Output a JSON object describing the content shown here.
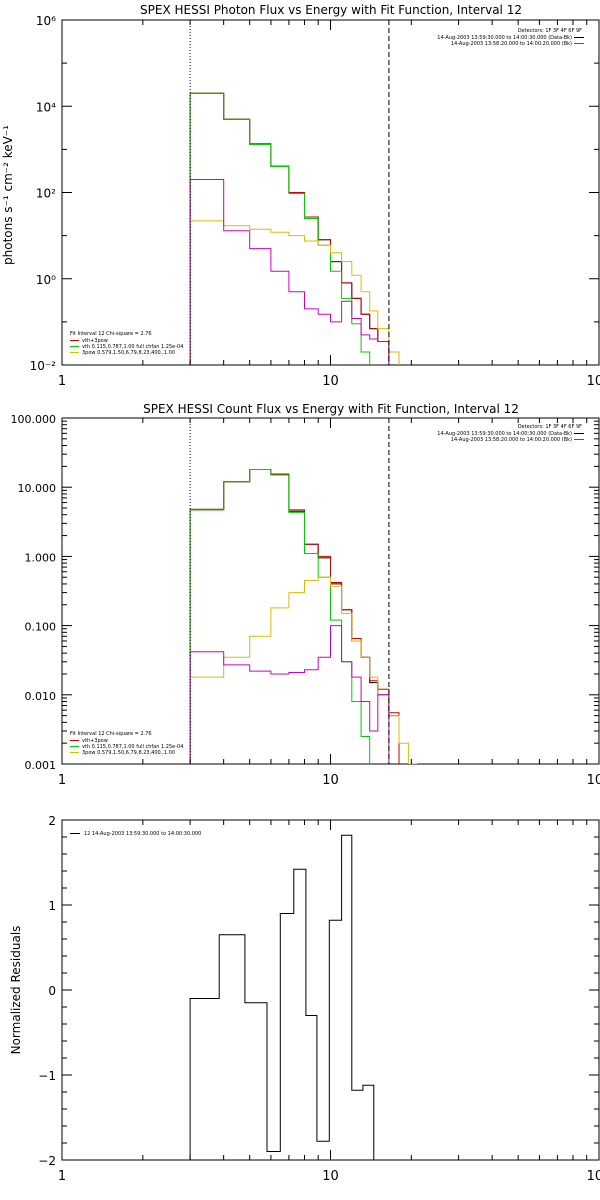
{
  "chart_data": [
    {
      "type": "line",
      "title": "SPEX HESSI Photon Flux vs Energy with Fit Function, Interval 12",
      "xlabel": "",
      "ylabel": "photons s⁻¹ cm⁻² keV⁻¹",
      "xscale": "log",
      "yscale": "log",
      "xlim": [
        1,
        100
      ],
      "ylim": [
        0.01,
        1000000
      ],
      "x_ticks": [
        1,
        10,
        100
      ],
      "x_tick_labels": [
        "1",
        "10",
        "100"
      ],
      "y_ticks": [
        0.01,
        1,
        100,
        10000,
        1000000
      ],
      "y_tick_labels": [
        "10⁻²",
        "10⁰",
        "10²",
        "10⁴",
        "10⁶"
      ],
      "grid": false,
      "vlines": [
        {
          "x": 3.0,
          "style": "dotted"
        },
        {
          "x": 16.5,
          "style": "dashed"
        }
      ],
      "legend_top_right": [
        "Detectors: 1F 3F 4F 6F 9F",
        "14-Aug-2003 13:59:30.000 to 14:00:30.000 (Data-Bk)",
        "14-Aug-2003 13:58:20.000 to 14:00:20.000 (Bk)"
      ],
      "legend_bottom_left_header": "Fit Interval 12   Chi-square = 2.76",
      "legend": [
        {
          "name": "vth+3pow",
          "color": "#cc0000"
        },
        {
          "name": "vth 0.115,0.787,1.00  full chfan 1.25e-04",
          "color": "#00cc00"
        },
        {
          "name": "3pow 0.579,1.50,6.79,8.23,400.,1.00",
          "color": "#ddbb00"
        }
      ],
      "edges": [
        3.0,
        4.0,
        5.0,
        6.0,
        7.0,
        8.0,
        9.0,
        10.0,
        11.0,
        12.0,
        13.0,
        14.0,
        15.0,
        16.5,
        18.0,
        19.5,
        21.0
      ],
      "series": [
        {
          "name": "Data-Bk",
          "color": "#000000",
          "values": [
            20000,
            5000,
            1300,
            400,
            100,
            27,
            8,
            2.5,
            0.8,
            0.35,
            0.15,
            0.07,
            0.035,
            0.009,
            null,
            null
          ]
        },
        {
          "name": "vth+3pow",
          "color": "#cc0000",
          "values": [
            20000,
            5000,
            1350,
            410,
            100,
            27,
            8,
            2.5,
            0.8,
            0.35,
            0.15,
            0.07,
            0.035,
            0.009,
            0.005,
            null
          ]
        },
        {
          "name": "vth",
          "color": "#00cc00",
          "values": [
            20000,
            5000,
            1300,
            400,
            95,
            25,
            6,
            1.5,
            0.35,
            0.09,
            0.02,
            0.005,
            null,
            null,
            null,
            null
          ]
        },
        {
          "name": "3pow",
          "color": "#ddbb00",
          "values": [
            22,
            17,
            14,
            12,
            10,
            7.5,
            6,
            4,
            2.5,
            1.2,
            0.5,
            0.18,
            0.07,
            0.02,
            0.005,
            null
          ]
        },
        {
          "name": "Bk",
          "color": "#cc00cc",
          "values": [
            200,
            13,
            5,
            1.5,
            0.5,
            0.2,
            0.15,
            0.1,
            0.3,
            0.12,
            0.05,
            0.04,
            0.035,
            0.009,
            null,
            null
          ]
        }
      ]
    },
    {
      "type": "line",
      "title": "SPEX HESSI Count Flux vs Energy with Fit Function, Interval 12",
      "xlabel": "",
      "ylabel": "",
      "xscale": "log",
      "yscale": "log",
      "xlim": [
        1,
        100
      ],
      "ylim": [
        0.001,
        100
      ],
      "x_ticks": [
        1,
        10,
        100
      ],
      "x_tick_labels": [
        "1",
        "10",
        "100"
      ],
      "y_ticks": [
        0.001,
        0.01,
        0.1,
        1,
        10,
        100
      ],
      "y_tick_labels": [
        "0.001",
        "0.010",
        "0.100",
        "1.000",
        "10.000",
        "100.000"
      ],
      "grid": false,
      "vlines": [
        {
          "x": 3.0,
          "style": "dotted"
        },
        {
          "x": 16.5,
          "style": "dashed"
        }
      ],
      "legend_top_right": [
        "Detectors: 1F 3F 4F 6F 9F",
        "14-Aug-2003 13:59:30.000 to 14:00:30.000 (Data-Bk)",
        "14-Aug-2003 13:58:20.000 to 14:00:20.000 (Bk)"
      ],
      "legend_bottom_left_header": "Fit Interval 12   Chi-square = 2.76",
      "legend": [
        {
          "name": "vth+3pow",
          "color": "#cc0000"
        },
        {
          "name": "vth 0.115,0.787,1.00  full chfan 1.25e-04",
          "color": "#00cc00"
        },
        {
          "name": "3pow 0.579,1.50,6.79,8.23,400.,1.00",
          "color": "#ddbb00"
        }
      ],
      "edges": [
        3.0,
        4.0,
        5.0,
        6.0,
        7.0,
        8.0,
        9.0,
        10.0,
        11.0,
        12.0,
        13.0,
        14.0,
        15.0,
        16.5,
        18.0,
        19.5,
        21.0
      ],
      "series": [
        {
          "name": "Data-Bk",
          "color": "#000000",
          "values": [
            4.7,
            12,
            18,
            15,
            4.5,
            1.5,
            0.95,
            0.4,
            0.17,
            0.06,
            0.035,
            0.015,
            0.01,
            0.005,
            null,
            null
          ]
        },
        {
          "name": "vth+3pow",
          "color": "#cc0000",
          "values": [
            4.8,
            12,
            18,
            15.5,
            4.7,
            1.5,
            1.0,
            0.42,
            0.17,
            0.065,
            0.035,
            0.016,
            0.012,
            0.0055,
            null,
            null
          ]
        },
        {
          "name": "vth",
          "color": "#00cc00",
          "values": [
            4.7,
            12,
            18,
            15,
            4.3,
            1.1,
            0.5,
            0.12,
            0.03,
            0.008,
            0.0025,
            null,
            null,
            null,
            null,
            null
          ]
        },
        {
          "name": "3pow",
          "color": "#ddbb00",
          "values": [
            0.018,
            0.035,
            0.07,
            0.18,
            0.3,
            0.45,
            0.5,
            0.37,
            0.15,
            0.06,
            0.035,
            0.018,
            0.01,
            0.005,
            0.002,
            0.001
          ]
        },
        {
          "name": "Bk",
          "color": "#cc00cc",
          "values": [
            0.042,
            0.027,
            0.022,
            0.02,
            0.021,
            0.023,
            0.035,
            0.1,
            0.03,
            0.018,
            0.008,
            0.003,
            0.01,
            null,
            null,
            null
          ]
        }
      ]
    },
    {
      "type": "line",
      "title": "",
      "xlabel": "",
      "ylabel": "Normalized Residuals",
      "xscale": "log",
      "yscale": "linear",
      "xlim": [
        1,
        100
      ],
      "ylim": [
        -2,
        2
      ],
      "x_ticks": [
        1,
        10,
        100
      ],
      "x_tick_labels": [
        "1",
        "10",
        "100"
      ],
      "y_ticks": [
        -2,
        -1,
        0,
        1,
        2
      ],
      "y_tick_labels": [
        "−2",
        "−1",
        "0",
        "1",
        "2"
      ],
      "grid": false,
      "legend": [
        {
          "name": "12  14-Aug-2003 13:59:30.000 to 14:00:30.000",
          "color": "#000000"
        }
      ],
      "edges": [
        3.0,
        3.85,
        4.8,
        5.8,
        6.5,
        7.3,
        8.1,
        8.9,
        9.9,
        11.0,
        12.0,
        13.2,
        14.5,
        16.5
      ],
      "series": [
        {
          "name": "residuals",
          "color": "#000000",
          "values": [
            -0.1,
            0.65,
            -0.15,
            -1.9,
            0.9,
            1.42,
            -0.3,
            -1.78,
            0.82,
            1.82,
            -1.18,
            -1.12,
            -2.05
          ]
        }
      ]
    }
  ]
}
